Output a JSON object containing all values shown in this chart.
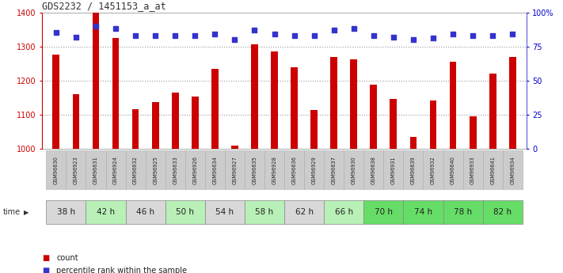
{
  "title": "GDS2232 / 1451153_a_at",
  "gsm_labels": [
    "GSM96630",
    "GSM96923",
    "GSM96631",
    "GSM96924",
    "GSM96632",
    "GSM96925",
    "GSM96633",
    "GSM96926",
    "GSM96634",
    "GSM96927",
    "GSM96635",
    "GSM96928",
    "GSM96636",
    "GSM96929",
    "GSM96637",
    "GSM96930",
    "GSM96638",
    "GSM96931",
    "GSM96639",
    "GSM96932",
    "GSM96640",
    "GSM96933",
    "GSM96641",
    "GSM96934"
  ],
  "time_groups": [
    {
      "label": "38 h",
      "indices": [
        0,
        1
      ],
      "color": "#d8d8d8"
    },
    {
      "label": "42 h",
      "indices": [
        2,
        3
      ],
      "color": "#b8f0b8"
    },
    {
      "label": "46 h",
      "indices": [
        4,
        5
      ],
      "color": "#d8d8d8"
    },
    {
      "label": "50 h",
      "indices": [
        6,
        7
      ],
      "color": "#b8f0b8"
    },
    {
      "label": "54 h",
      "indices": [
        8,
        9
      ],
      "color": "#d8d8d8"
    },
    {
      "label": "58 h",
      "indices": [
        10,
        11
      ],
      "color": "#b8f0b8"
    },
    {
      "label": "62 h",
      "indices": [
        12,
        13
      ],
      "color": "#d8d8d8"
    },
    {
      "label": "66 h",
      "indices": [
        14,
        15
      ],
      "color": "#b8f0b8"
    },
    {
      "label": "70 h",
      "indices": [
        16,
        17
      ],
      "color": "#66dd66"
    },
    {
      "label": "74 h",
      "indices": [
        18,
        19
      ],
      "color": "#66dd66"
    },
    {
      "label": "78 h",
      "indices": [
        20,
        21
      ],
      "color": "#66dd66"
    },
    {
      "label": "82 h",
      "indices": [
        22,
        23
      ],
      "color": "#66dd66"
    }
  ],
  "count_values": [
    1275,
    1160,
    1400,
    1325,
    1115,
    1138,
    1165,
    1152,
    1235,
    1010,
    1305,
    1285,
    1238,
    1113,
    1270,
    1262,
    1188,
    1145,
    1035,
    1142,
    1255,
    1095,
    1220,
    1268
  ],
  "percentile_values": [
    85,
    82,
    90,
    88,
    83,
    83,
    83,
    83,
    84,
    80,
    87,
    84,
    83,
    83,
    87,
    88,
    83,
    82,
    80,
    81,
    84,
    83,
    83,
    84
  ],
  "ylim_left": [
    1000,
    1400
  ],
  "ylim_right": [
    0,
    100
  ],
  "bar_color": "#cc0000",
  "dot_color": "#3333cc",
  "grid_color": "#999999",
  "axis_color_left": "#cc0000",
  "axis_color_right": "#0000cc",
  "bg_color": "#ffffff",
  "plot_bg_color": "#ffffff",
  "gsm_bg_color": "#cccccc"
}
